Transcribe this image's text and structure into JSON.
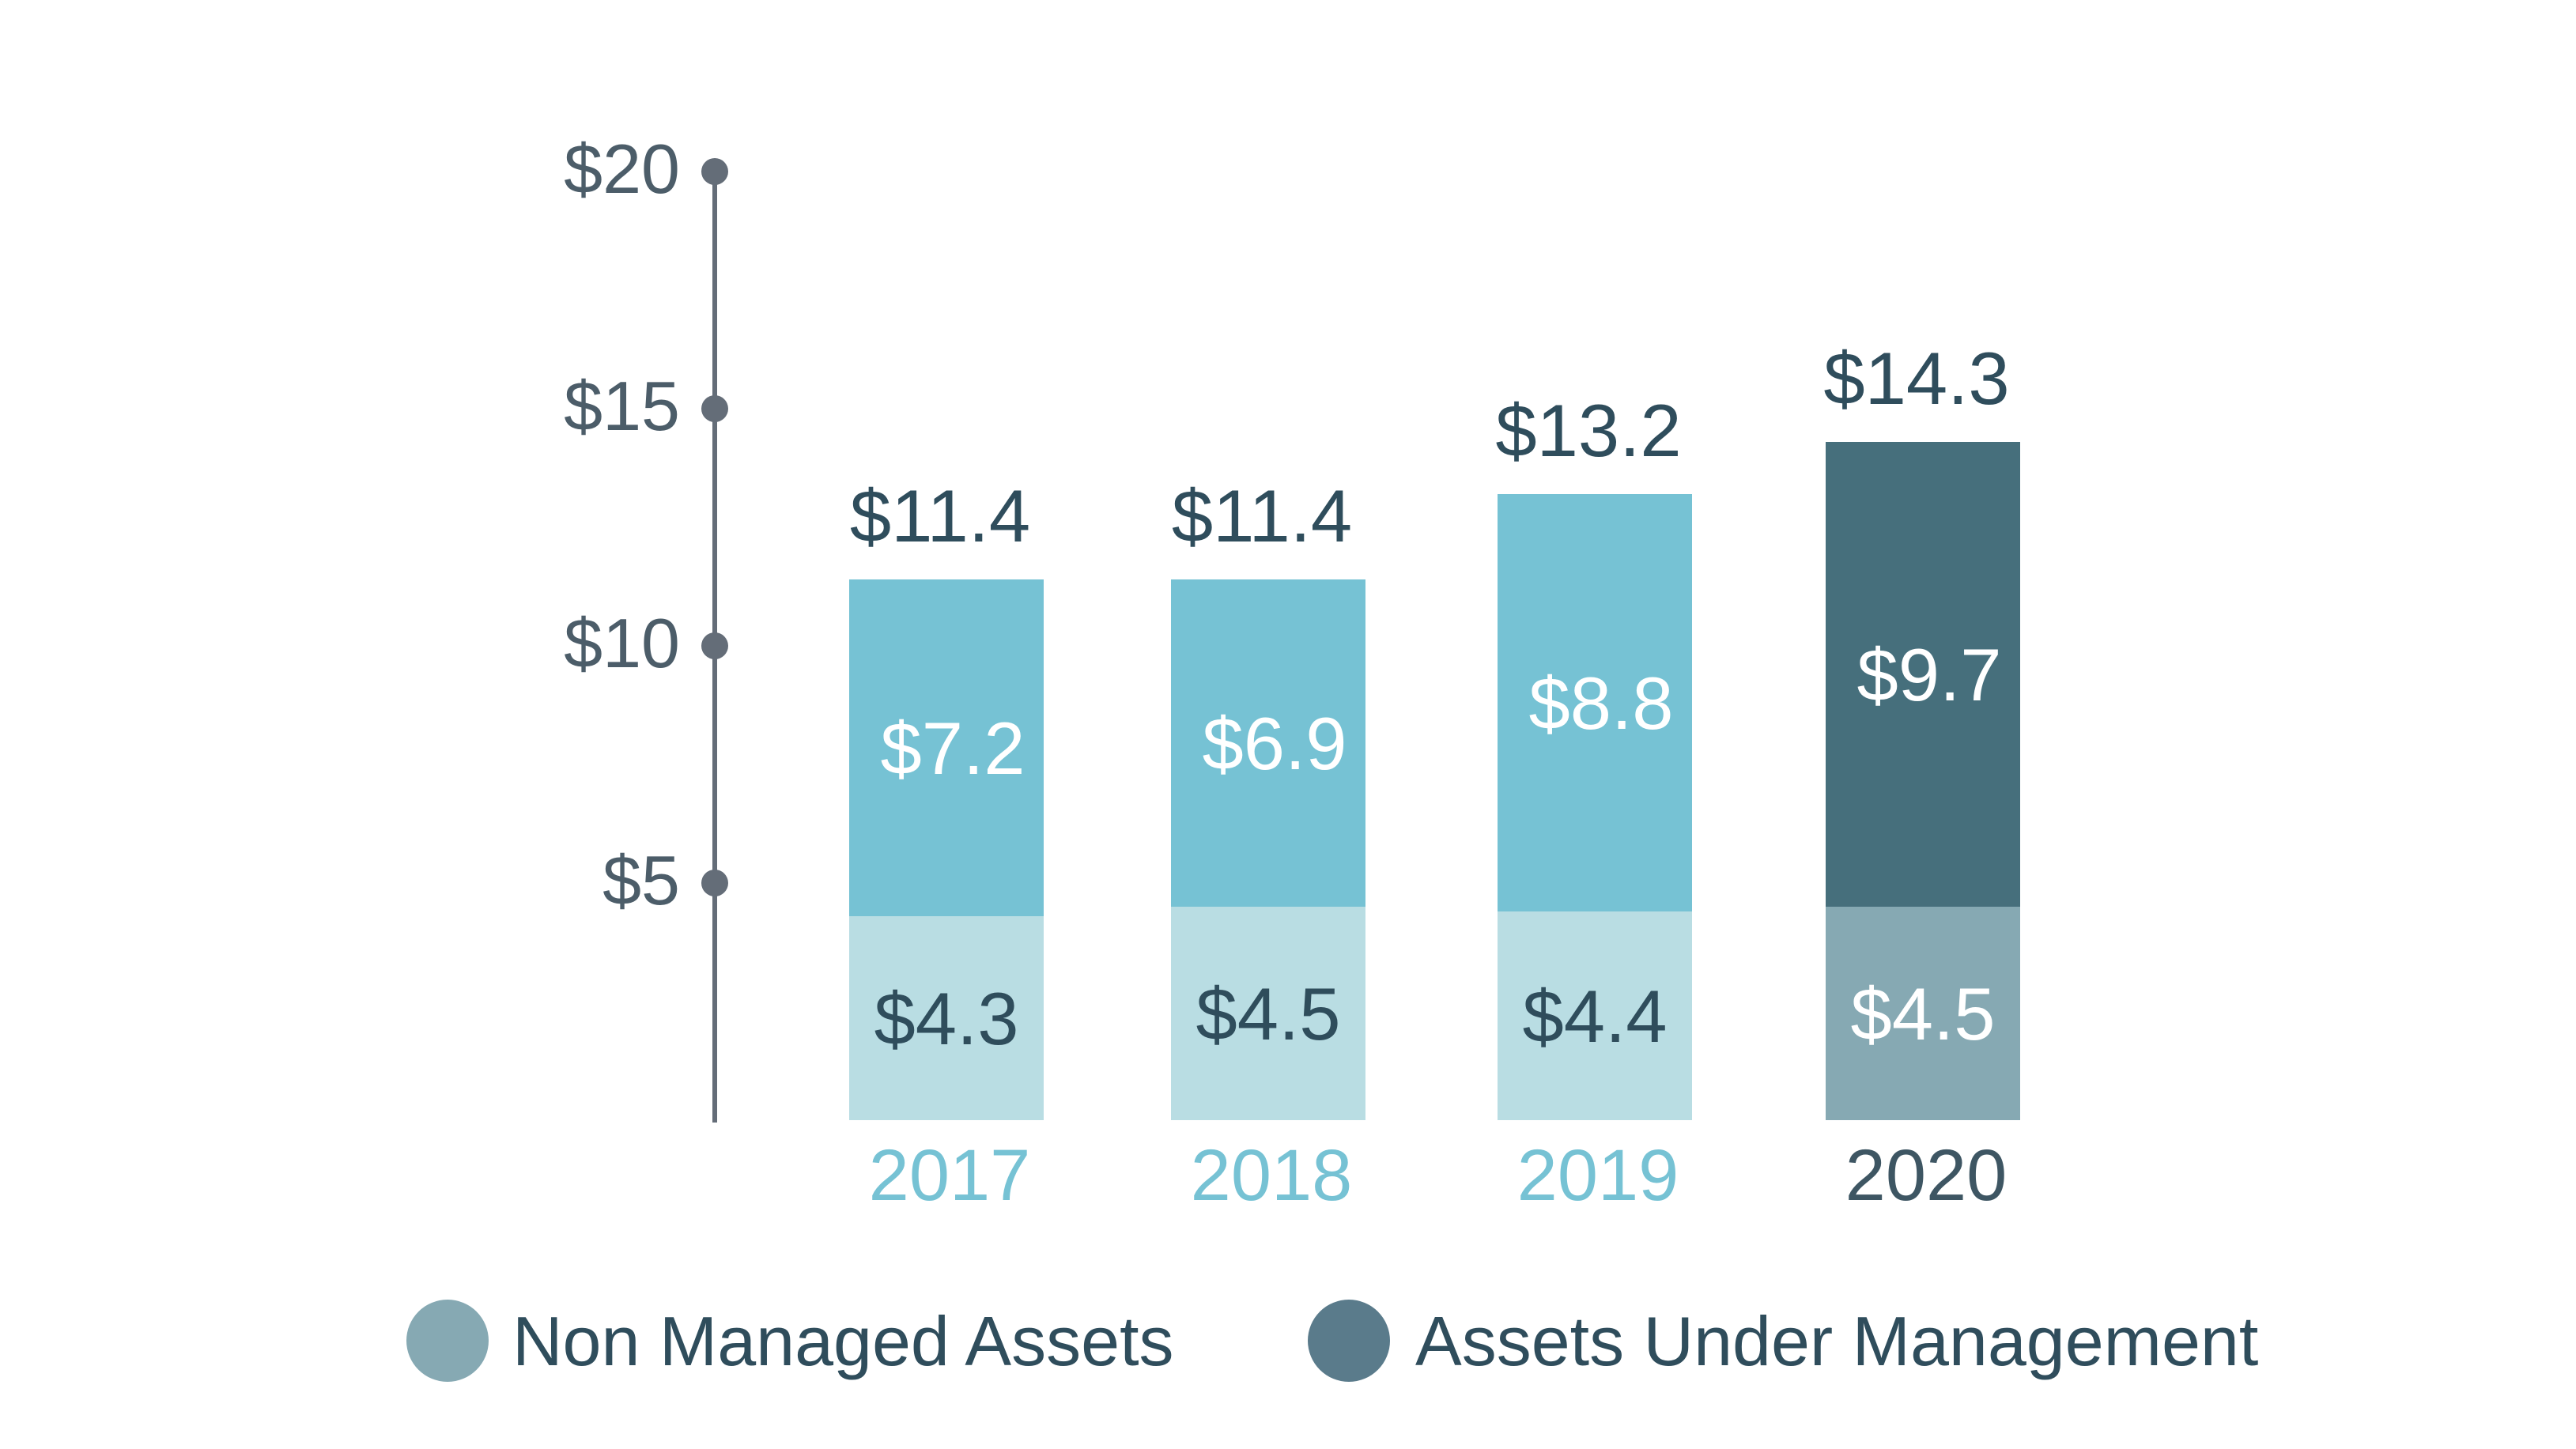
{
  "chart_data": {
    "type": "bar",
    "stacked": true,
    "categories": [
      "2017",
      "2018",
      "2019",
      "2020"
    ],
    "series": [
      {
        "name": "Non Managed Assets",
        "values": [
          4.3,
          4.5,
          4.4,
          4.5
        ],
        "labels": [
          "$4.3",
          "$4.5",
          "$4.4",
          "$4.5"
        ]
      },
      {
        "name": "Assets Under Management",
        "values": [
          7.2,
          6.9,
          8.8,
          9.7
        ],
        "labels": [
          "$7.2",
          "$6.9",
          "$8.8",
          "$9.7"
        ]
      }
    ],
    "totals": [
      11.4,
      11.4,
      13.2,
      14.3
    ],
    "total_labels": [
      "$11.4",
      "$11.4",
      "$13.2",
      "$14.3"
    ],
    "yticks": [
      5,
      10,
      15,
      20
    ],
    "ytick_labels": [
      "$5",
      "$10",
      "$15",
      "$20"
    ],
    "ylim": [
      0,
      20
    ],
    "legend": {
      "position": "bottom",
      "entries": [
        "Non Managed Assets",
        "Assets Under Management"
      ]
    },
    "highlight_category": "2020",
    "colors": {
      "lower_default": "#b9dde3",
      "upper_default": "#76c2d4",
      "lower_highlight": "#86a9b3",
      "upper_highlight": "#466f7c",
      "label_dark": "#2f4d5c",
      "label_light": "#ffffff",
      "year_default": "#76c2d4",
      "year_highlight": "#3e5663",
      "axis": "#646d78",
      "tick_text": "#4c5d69",
      "legend_non_managed": "#86a9b3",
      "legend_aum": "#5a7b8b",
      "legend_text": "#2f4d5c"
    }
  }
}
